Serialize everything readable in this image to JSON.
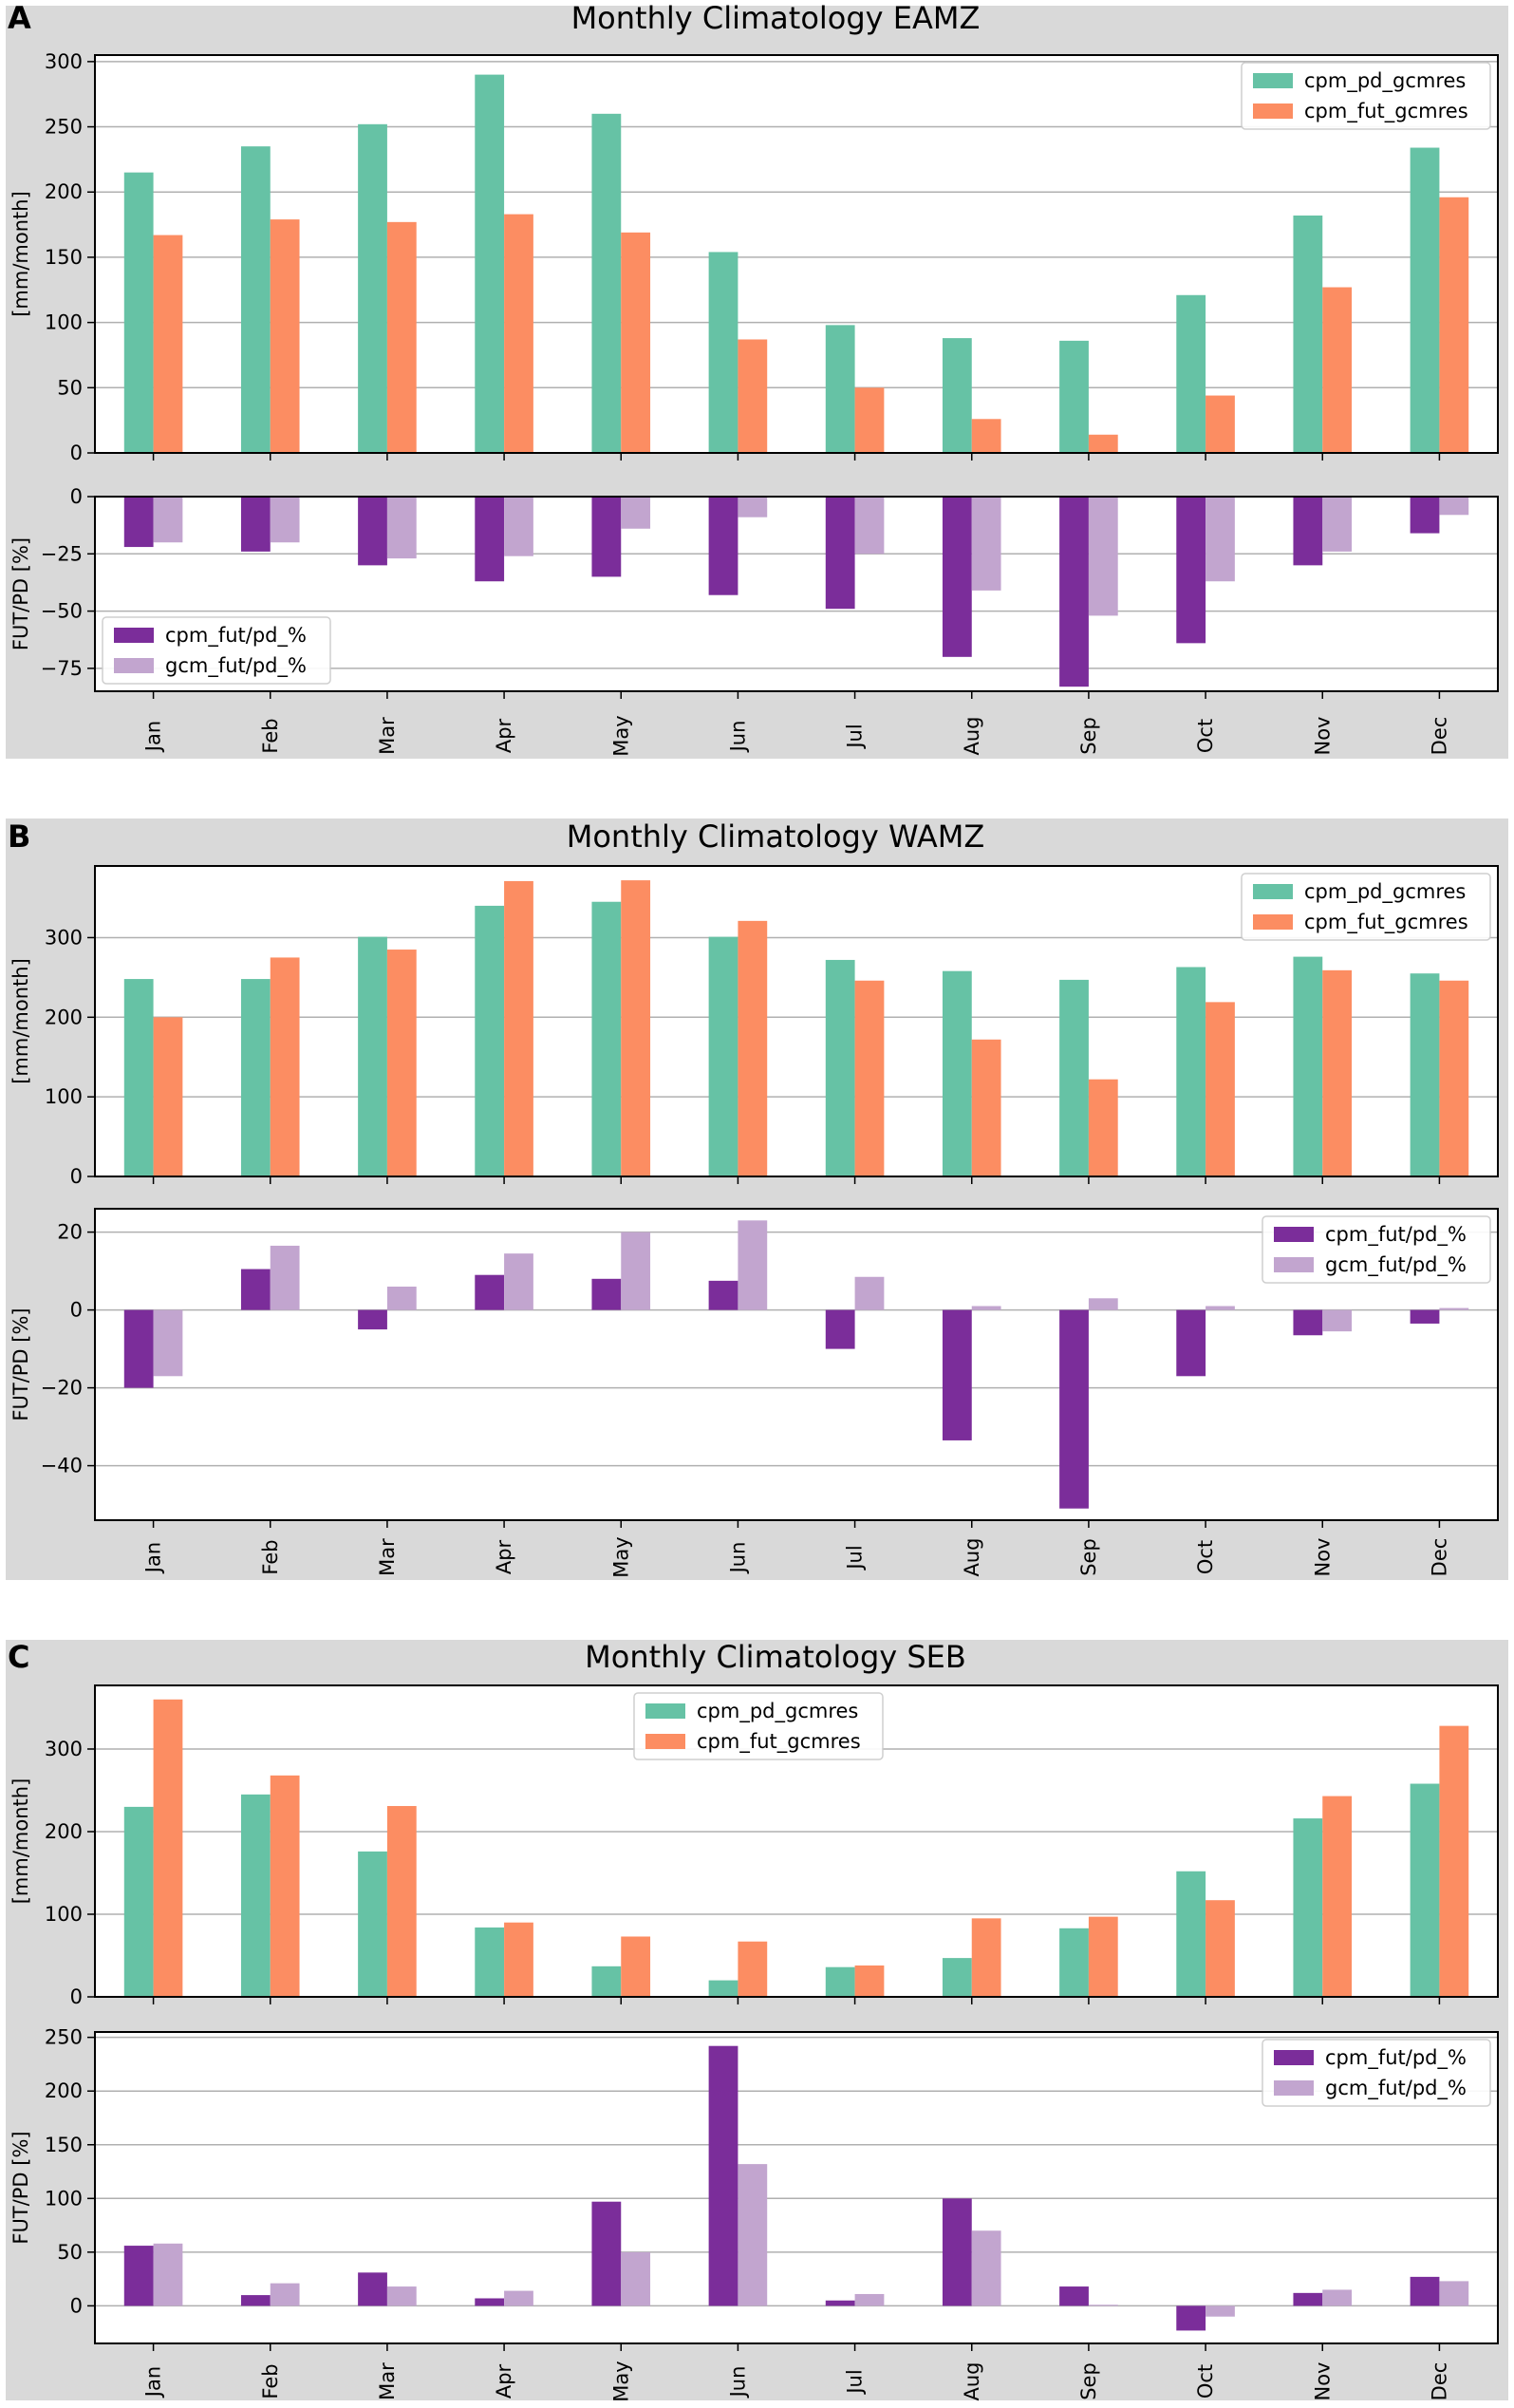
{
  "colors": {
    "cpm_pd": "#66c2a5",
    "cpm_fut": "#fc8d62",
    "cpm_pct": "#7b2d9a",
    "gcm_pct": "#c2a5cf",
    "panel_bg": "#d9d9d9"
  },
  "chart_data": [
    {
      "panel": "A",
      "title": "Monthly Climatology EAMZ",
      "categories": [
        "Jan",
        "Feb",
        "Mar",
        "Apr",
        "May",
        "Jun",
        "Jul",
        "Aug",
        "Sep",
        "Oct",
        "Nov",
        "Dec"
      ],
      "top": {
        "type": "bar",
        "ylabel": "[mm/month]",
        "ylim": [
          0,
          305
        ],
        "yticks": [
          0,
          50,
          100,
          150,
          200,
          250,
          300
        ],
        "legend_position": "top-right",
        "series": [
          {
            "name": "cpm_pd_gcmres",
            "color_key": "cpm_pd",
            "values": [
              215,
              235,
              252,
              290,
              260,
              154,
              98,
              88,
              86,
              121,
              182,
              234
            ]
          },
          {
            "name": "cpm_fut_gcmres",
            "color_key": "cpm_fut",
            "values": [
              167,
              179,
              177,
              183,
              169,
              87,
              50,
              26,
              14,
              44,
              127,
              196
            ]
          }
        ]
      },
      "bottom": {
        "type": "bar",
        "ylabel": "FUT/PD [%]",
        "ylim": [
          -85,
          0
        ],
        "yticks": [
          -75,
          -50,
          -25,
          0
        ],
        "legend_position": "bottom-left",
        "series": [
          {
            "name": "cpm_fut/pd_%",
            "color_key": "cpm_pct",
            "values": [
              -22,
              -24,
              -30,
              -37,
              -35,
              -43,
              -49,
              -70,
              -83,
              -64,
              -30,
              -16
            ]
          },
          {
            "name": "gcm_fut/pd_%",
            "color_key": "gcm_pct",
            "values": [
              -20,
              -20,
              -27,
              -26,
              -14,
              -9,
              -25,
              -41,
              -52,
              -37,
              -24,
              -8
            ]
          }
        ]
      }
    },
    {
      "panel": "B",
      "title": "Monthly Climatology WAMZ",
      "categories": [
        "Jan",
        "Feb",
        "Mar",
        "Apr",
        "May",
        "Jun",
        "Jul",
        "Aug",
        "Sep",
        "Oct",
        "Nov",
        "Dec"
      ],
      "top": {
        "type": "bar",
        "ylabel": "[mm/month]",
        "ylim": [
          0,
          390
        ],
        "yticks": [
          0,
          100,
          200,
          300
        ],
        "legend_position": "top-right",
        "series": [
          {
            "name": "cpm_pd_gcmres",
            "color_key": "cpm_pd",
            "values": [
              248,
              248,
              301,
              340,
              345,
              301,
              272,
              258,
              247,
              263,
              276,
              255
            ]
          },
          {
            "name": "cpm_fut_gcmres",
            "color_key": "cpm_fut",
            "values": [
              200,
              275,
              285,
              371,
              372,
              321,
              246,
              172,
              122,
              219,
              259,
              246
            ]
          }
        ]
      },
      "bottom": {
        "type": "bar",
        "ylabel": "FUT/PD [%]",
        "ylim": [
          -54,
          26
        ],
        "yticks": [
          -40,
          -20,
          0,
          20
        ],
        "legend_position": "top-right",
        "series": [
          {
            "name": "cpm_fut/pd_%",
            "color_key": "cpm_pct",
            "values": [
              -20,
              10.5,
              -5,
              9,
              8,
              7.5,
              -10,
              -33.5,
              -51,
              -17,
              -6.5,
              -3.5
            ]
          },
          {
            "name": "gcm_fut/pd_%",
            "color_key": "gcm_pct",
            "values": [
              -17,
              16.5,
              6,
              14.5,
              20,
              23,
              8.5,
              1,
              3,
              1,
              -5.5,
              0.5
            ]
          }
        ]
      }
    },
    {
      "panel": "C",
      "title": "Monthly Climatology SEB",
      "categories": [
        "Jan",
        "Feb",
        "Mar",
        "Apr",
        "May",
        "Jun",
        "Jul",
        "Aug",
        "Sep",
        "Oct",
        "Nov",
        "Dec"
      ],
      "top": {
        "type": "bar",
        "ylabel": "[mm/month]",
        "ylim": [
          0,
          377
        ],
        "yticks": [
          0,
          100,
          200,
          300
        ],
        "legend_position": "top-center",
        "series": [
          {
            "name": "cpm_pd_gcmres",
            "color_key": "cpm_pd",
            "values": [
              230,
              245,
              176,
              84,
              37,
              20,
              36,
              47,
              83,
              152,
              216,
              258
            ]
          },
          {
            "name": "cpm_fut_gcmres",
            "color_key": "cpm_fut",
            "values": [
              360,
              268,
              231,
              90,
              73,
              67,
              38,
              95,
              97,
              117,
              243,
              328
            ]
          }
        ]
      },
      "bottom": {
        "type": "bar",
        "ylabel": "FUT/PD [%]",
        "ylim": [
          -35,
          255
        ],
        "yticks": [
          0,
          50,
          100,
          150,
          200,
          250
        ],
        "legend_position": "top-right",
        "series": [
          {
            "name": "cpm_fut/pd_%",
            "color_key": "cpm_pct",
            "values": [
              56,
              10,
              31,
              7,
              97,
              242,
              5,
              100,
              18,
              -23,
              12,
              27
            ]
          },
          {
            "name": "gcm_fut/pd_%",
            "color_key": "gcm_pct",
            "values": [
              58,
              21,
              18,
              14,
              50,
              132,
              11,
              70,
              1,
              -10,
              15,
              23
            ]
          }
        ]
      }
    }
  ]
}
